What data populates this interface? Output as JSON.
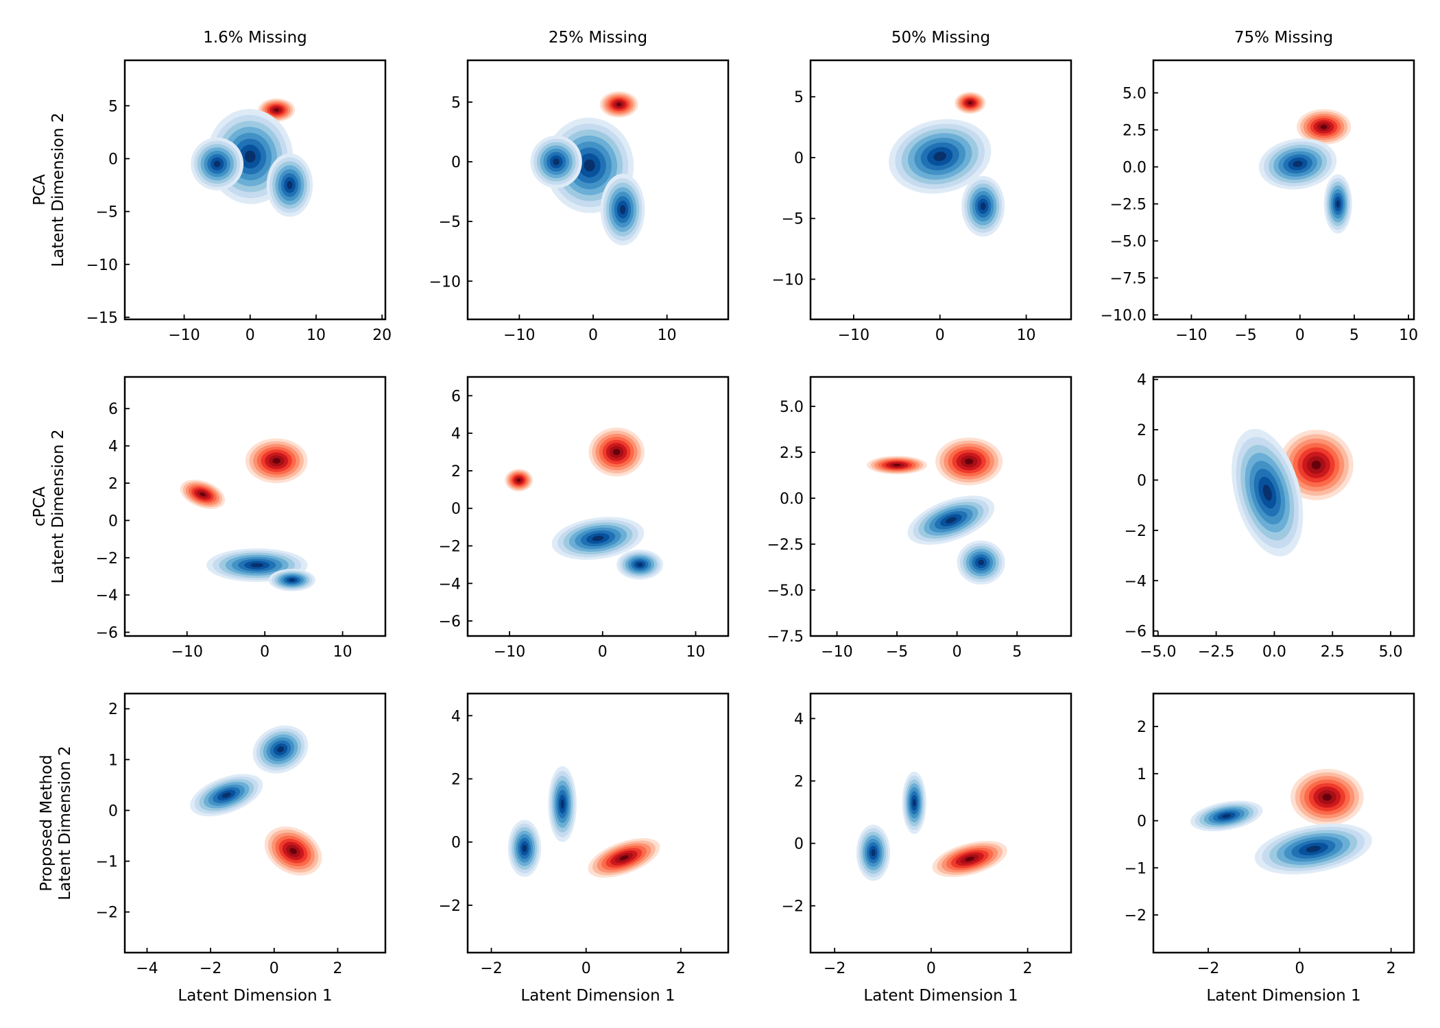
{
  "figure": {
    "column_titles": [
      "1.6% Missing",
      "25% Missing",
      "50% Missing",
      "75% Missing"
    ],
    "row_labels": [
      [
        "PCA",
        "Latent Dimension 2"
      ],
      [
        "cPCA",
        "Latent Dimension 2"
      ],
      [
        "Proposed Method",
        "Latent Dimension 2"
      ]
    ],
    "xlabel": "Latent Dimension 1",
    "colors": {
      "blue_levels": [
        "#deebf7",
        "#c6dbef",
        "#9ecae1",
        "#6baed6",
        "#4292c6",
        "#2171b5",
        "#08519c",
        "#08306b"
      ],
      "red_levels": [
        "#fee0d2",
        "#fcbba1",
        "#fc9272",
        "#fb6a4a",
        "#ef3b2c",
        "#cb181d",
        "#a50f15",
        "#67000d"
      ]
    }
  },
  "chart_data": [
    {
      "type": "heatmap",
      "title": "1.6% Missing",
      "row": "PCA",
      "xlabel": "",
      "ylabel": "Latent Dimension 2",
      "xlim": [
        -19,
        20.5
      ],
      "ylim": [
        -15.2,
        9.3
      ],
      "xticks": [
        -10,
        0,
        10,
        20
      ],
      "xtick_labels": [
        "−10",
        "0",
        "10",
        "20"
      ],
      "yticks": [
        -15,
        -10,
        -5,
        0,
        5
      ],
      "ytick_labels": [
        "−15",
        "−10",
        "−5",
        "0",
        "5"
      ],
      "series": [
        {
          "name": "",
          "color_scale": "red",
          "clusters": [
            {
              "cx": 4,
              "cy": 4.6,
              "sx": 2.8,
              "sy": 1.1,
              "rot": 0
            }
          ]
        },
        {
          "name": "",
          "color_scale": "blue",
          "clusters": [
            {
              "cx": 0,
              "cy": 0.2,
              "sx": 6.5,
              "sy": 4.5,
              "rot": -5
            },
            {
              "cx": 6,
              "cy": -2.5,
              "sx": 3.5,
              "sy": 3,
              "rot": 0
            },
            {
              "cx": -5,
              "cy": -0.5,
              "sx": 4,
              "sy": 2.5,
              "rot": 0
            }
          ]
        }
      ]
    },
    {
      "type": "heatmap",
      "title": "25% Missing",
      "row": "PCA",
      "xlabel": "",
      "ylabel": "",
      "xlim": [
        -17,
        18.3
      ],
      "ylim": [
        -13.2,
        8.5
      ],
      "xticks": [
        -10,
        0,
        10
      ],
      "xtick_labels": [
        "−10",
        "0",
        "10"
      ],
      "yticks": [
        -10,
        -5,
        0,
        5
      ],
      "ytick_labels": [
        "−10",
        "−5",
        "0",
        "5"
      ],
      "series": [
        {
          "name": "",
          "color_scale": "red",
          "clusters": [
            {
              "cx": 3.5,
              "cy": 4.8,
              "sx": 2.6,
              "sy": 1.1,
              "rot": 0
            }
          ]
        },
        {
          "name": "",
          "color_scale": "blue",
          "clusters": [
            {
              "cx": -0.5,
              "cy": -0.3,
              "sx": 6,
              "sy": 4,
              "rot": -5
            },
            {
              "cx": 4,
              "cy": -4,
              "sx": 3,
              "sy": 3,
              "rot": 0
            },
            {
              "cx": -5,
              "cy": 0,
              "sx": 3.5,
              "sy": 2.2,
              "rot": 0
            }
          ]
        }
      ]
    },
    {
      "type": "heatmap",
      "title": "50% Missing",
      "row": "PCA",
      "xlabel": "",
      "ylabel": "",
      "xlim": [
        -15,
        15.2
      ],
      "ylim": [
        -13.3,
        8
      ],
      "xticks": [
        -10,
        0,
        10
      ],
      "xtick_labels": [
        "−10",
        "0",
        "10"
      ],
      "yticks": [
        -10,
        -5,
        0,
        5
      ],
      "ytick_labels": [
        "−10",
        "−5",
        "0",
        "5"
      ],
      "series": [
        {
          "name": "",
          "color_scale": "red",
          "clusters": [
            {
              "cx": 3.5,
              "cy": 4.5,
              "sx": 1.8,
              "sy": 0.9,
              "rot": 0
            }
          ]
        },
        {
          "name": "",
          "color_scale": "blue",
          "clusters": [
            {
              "cx": 0,
              "cy": 0.1,
              "sx": 6,
              "sy": 3,
              "rot": -12
            },
            {
              "cx": 5,
              "cy": -4,
              "sx": 2.5,
              "sy": 2.5,
              "rot": 0
            }
          ]
        }
      ]
    },
    {
      "type": "heatmap",
      "title": "75% Missing",
      "row": "PCA",
      "xlabel": "",
      "ylabel": "",
      "xlim": [
        -13.5,
        10.5
      ],
      "ylim": [
        -10.3,
        7.2
      ],
      "xticks": [
        -10,
        -5,
        0,
        5,
        10
      ],
      "xtick_labels": [
        "−10",
        "−5",
        "0",
        "5",
        "10"
      ],
      "yticks": [
        -10,
        -7.5,
        -5,
        -2.5,
        0,
        2.5,
        5
      ],
      "ytick_labels": [
        "−10.0",
        "−7.5",
        "−5.0",
        "−2.5",
        "0.0",
        "2.5",
        "5.0"
      ],
      "series": [
        {
          "name": "",
          "color_scale": "red",
          "clusters": [
            {
              "cx": 2.2,
              "cy": 2.7,
              "sx": 2.5,
              "sy": 1.2,
              "rot": 0
            }
          ]
        },
        {
          "name": "",
          "color_scale": "blue",
          "clusters": [
            {
              "cx": -0.2,
              "cy": 0.2,
              "sx": 3.6,
              "sy": 1.7,
              "rot": -8
            },
            {
              "cx": 3.5,
              "cy": -2.5,
              "sx": 1.3,
              "sy": 2,
              "rot": 0
            }
          ]
        }
      ]
    },
    {
      "type": "heatmap",
      "title": "",
      "row": "cPCA",
      "xlabel": "",
      "ylabel": "Latent Dimension 2",
      "xlim": [
        -18,
        15.5
      ],
      "ylim": [
        -6.2,
        7.7
      ],
      "xticks": [
        -10,
        0,
        10
      ],
      "xtick_labels": [
        "−10",
        "0",
        "10"
      ],
      "yticks": [
        -6,
        -4,
        -2,
        0,
        2,
        4,
        6
      ],
      "ytick_labels": [
        "−6",
        "−4",
        "−2",
        "0",
        "2",
        "4",
        "6"
      ],
      "series": [
        {
          "name": "",
          "color_scale": "red",
          "clusters": [
            {
              "cx": 1.5,
              "cy": 3.2,
              "sx": 4,
              "sy": 1.2,
              "rot": 0
            },
            {
              "cx": -8,
              "cy": 1.4,
              "sx": 3,
              "sy": 0.7,
              "rot": 20
            }
          ]
        },
        {
          "name": "",
          "color_scale": "blue",
          "clusters": [
            {
              "cx": -1,
              "cy": -2.4,
              "sx": 6.5,
              "sy": 0.9,
              "rot": 0
            },
            {
              "cx": 3.5,
              "cy": -3.2,
              "sx": 3,
              "sy": 0.6,
              "rot": 0
            }
          ]
        }
      ]
    },
    {
      "type": "heatmap",
      "title": "",
      "row": "cPCA",
      "xlabel": "",
      "ylabel": "",
      "xlim": [
        -14.5,
        13.5
      ],
      "ylim": [
        -6.8,
        7
      ],
      "xticks": [
        -10,
        0,
        10
      ],
      "xtick_labels": [
        "−10",
        "0",
        "10"
      ],
      "yticks": [
        -6,
        -4,
        -2,
        0,
        2,
        4,
        6
      ],
      "ytick_labels": [
        "−6",
        "−4",
        "−2",
        "0",
        "2",
        "4",
        "6"
      ],
      "series": [
        {
          "name": "",
          "color_scale": "red",
          "clusters": [
            {
              "cx": 1.5,
              "cy": 3,
              "sx": 3,
              "sy": 1.3,
              "rot": 0
            },
            {
              "cx": -9,
              "cy": 1.5,
              "sx": 1.5,
              "sy": 0.6,
              "rot": 0
            }
          ]
        },
        {
          "name": "",
          "color_scale": "blue",
          "clusters": [
            {
              "cx": -0.5,
              "cy": -1.6,
              "sx": 5,
              "sy": 1.1,
              "rot": -8
            },
            {
              "cx": 4,
              "cy": -3,
              "sx": 2.5,
              "sy": 0.8,
              "rot": 0
            }
          ]
        }
      ]
    },
    {
      "type": "heatmap",
      "title": "",
      "row": "cPCA",
      "xlabel": "",
      "ylabel": "",
      "xlim": [
        -12.2,
        9.5
      ],
      "ylim": [
        -7.5,
        6.6
      ],
      "xticks": [
        -10,
        -5,
        0,
        5
      ],
      "xtick_labels": [
        "−10",
        "−5",
        "0",
        "5"
      ],
      "yticks": [
        -7.5,
        -5,
        -2.5,
        0,
        2.5,
        5
      ],
      "ytick_labels": [
        "−7.5",
        "−5.0",
        "−2.5",
        "0.0",
        "2.5",
        "5.0"
      ],
      "series": [
        {
          "name": "",
          "color_scale": "red",
          "clusters": [
            {
              "cx": 1,
              "cy": 2,
              "sx": 2.8,
              "sy": 1.3,
              "rot": 0
            },
            {
              "cx": -5,
              "cy": 1.8,
              "sx": 2.5,
              "sy": 0.5,
              "rot": 0
            }
          ]
        },
        {
          "name": "",
          "color_scale": "blue",
          "clusters": [
            {
              "cx": -0.5,
              "cy": -1.2,
              "sx": 3.8,
              "sy": 1.1,
              "rot": -20
            },
            {
              "cx": 2,
              "cy": -3.5,
              "sx": 2,
              "sy": 1.2,
              "rot": 0
            }
          ]
        }
      ]
    },
    {
      "type": "heatmap",
      "title": "",
      "row": "cPCA",
      "xlabel": "",
      "ylabel": "",
      "xlim": [
        -5.2,
        6
      ],
      "ylim": [
        -6.2,
        4.1
      ],
      "xticks": [
        -5,
        -2.5,
        0,
        2.5,
        5
      ],
      "xtick_labels": [
        "−5.0",
        "−2.5",
        "0.0",
        "2.5",
        "5.0"
      ],
      "yticks": [
        -6,
        -4,
        -2,
        0,
        2,
        4
      ],
      "ytick_labels": [
        "−6",
        "−4",
        "−2",
        "0",
        "2",
        "4"
      ],
      "series": [
        {
          "name": "",
          "color_scale": "red",
          "clusters": [
            {
              "cx": 1.8,
              "cy": 0.6,
              "sx": 1.6,
              "sy": 1.4,
              "rot": 0
            }
          ]
        },
        {
          "name": "",
          "color_scale": "blue",
          "clusters": [
            {
              "cx": -0.3,
              "cy": -0.5,
              "sx": 1.4,
              "sy": 2.6,
              "rot": -15
            }
          ]
        }
      ]
    },
    {
      "type": "heatmap",
      "title": "",
      "row": "Proposed Method",
      "xlabel": "Latent Dimension 1",
      "ylabel": "Latent Dimension 2",
      "xlim": [
        -4.7,
        3.5
      ],
      "ylim": [
        -2.8,
        2.3
      ],
      "xticks": [
        -4,
        -2,
        0,
        2
      ],
      "xtick_labels": [
        "−4",
        "−2",
        "0",
        "2"
      ],
      "yticks": [
        -2,
        -1,
        0,
        1,
        2
      ],
      "ytick_labels": [
        "−2",
        "−1",
        "0",
        "1",
        "2"
      ],
      "series": [
        {
          "name": "",
          "color_scale": "red",
          "clusters": [
            {
              "cx": 0.6,
              "cy": -0.8,
              "sx": 0.7,
              "sy": 0.6,
              "rot": -60
            }
          ]
        },
        {
          "name": "",
          "color_scale": "blue",
          "clusters": [
            {
              "cx": 0.2,
              "cy": 1.2,
              "sx": 0.9,
              "sy": 0.45,
              "rot": -25
            },
            {
              "cx": -1.5,
              "cy": 0.3,
              "sx": 1.2,
              "sy": 0.35,
              "rot": -20
            }
          ]
        }
      ]
    },
    {
      "type": "heatmap",
      "title": "",
      "row": "Proposed Method",
      "xlabel": "Latent Dimension 1",
      "ylabel": "",
      "xlim": [
        -2.5,
        3
      ],
      "ylim": [
        -3.5,
        4.7
      ],
      "xticks": [
        -2,
        0,
        2
      ],
      "xtick_labels": [
        "−2",
        "0",
        "2"
      ],
      "yticks": [
        -2,
        0,
        2,
        4
      ],
      "ytick_labels": [
        "−2",
        "0",
        "2",
        "4"
      ],
      "series": [
        {
          "name": "",
          "color_scale": "red",
          "clusters": [
            {
              "cx": 0.8,
              "cy": -0.5,
              "sx": 0.8,
              "sy": 0.5,
              "rot": -20
            }
          ]
        },
        {
          "name": "",
          "color_scale": "blue",
          "clusters": [
            {
              "cx": -1.3,
              "cy": -0.2,
              "sx": 0.35,
              "sy": 0.9,
              "rot": 0
            },
            {
              "cx": -0.5,
              "cy": 1.2,
              "sx": 0.3,
              "sy": 1.2,
              "rot": 0
            }
          ]
        }
      ]
    },
    {
      "type": "heatmap",
      "title": "",
      "row": "Proposed Method",
      "xlabel": "Latent Dimension 1",
      "ylabel": "",
      "xlim": [
        -2.5,
        2.9
      ],
      "ylim": [
        -3.5,
        4.8
      ],
      "xticks": [
        -2,
        0,
        2
      ],
      "xtick_labels": [
        "−2",
        "0",
        "2"
      ],
      "yticks": [
        -2,
        0,
        2,
        4
      ],
      "ytick_labels": [
        "−2",
        "0",
        "2",
        "4"
      ],
      "series": [
        {
          "name": "",
          "color_scale": "red",
          "clusters": [
            {
              "cx": 0.8,
              "cy": -0.5,
              "sx": 0.8,
              "sy": 0.5,
              "rot": -15
            }
          ]
        },
        {
          "name": "",
          "color_scale": "blue",
          "clusters": [
            {
              "cx": -1.2,
              "cy": -0.3,
              "sx": 0.35,
              "sy": 0.9,
              "rot": 0
            },
            {
              "cx": -0.35,
              "cy": 1.3,
              "sx": 0.25,
              "sy": 1,
              "rot": 0
            }
          ]
        }
      ]
    },
    {
      "type": "heatmap",
      "title": "",
      "row": "Proposed Method",
      "xlabel": "Latent Dimension 1",
      "ylabel": "",
      "xlim": [
        -3.2,
        2.5
      ],
      "ylim": [
        -2.8,
        2.7
      ],
      "xticks": [
        -2,
        0,
        2
      ],
      "xtick_labels": [
        "−2",
        "0",
        "2"
      ],
      "yticks": [
        -2,
        -1,
        0,
        1,
        2
      ],
      "ytick_labels": [
        "−2",
        "−1",
        "0",
        "1",
        "2"
      ],
      "series": [
        {
          "name": "",
          "color_scale": "red",
          "clusters": [
            {
              "cx": 0.6,
              "cy": 0.5,
              "sx": 0.8,
              "sy": 0.6,
              "rot": 0
            }
          ]
        },
        {
          "name": "",
          "color_scale": "blue",
          "clusters": [
            {
              "cx": 0.3,
              "cy": -0.6,
              "sx": 1.3,
              "sy": 0.5,
              "rot": -10
            },
            {
              "cx": -1.6,
              "cy": 0.1,
              "sx": 0.8,
              "sy": 0.3,
              "rot": -10
            }
          ]
        }
      ]
    }
  ]
}
